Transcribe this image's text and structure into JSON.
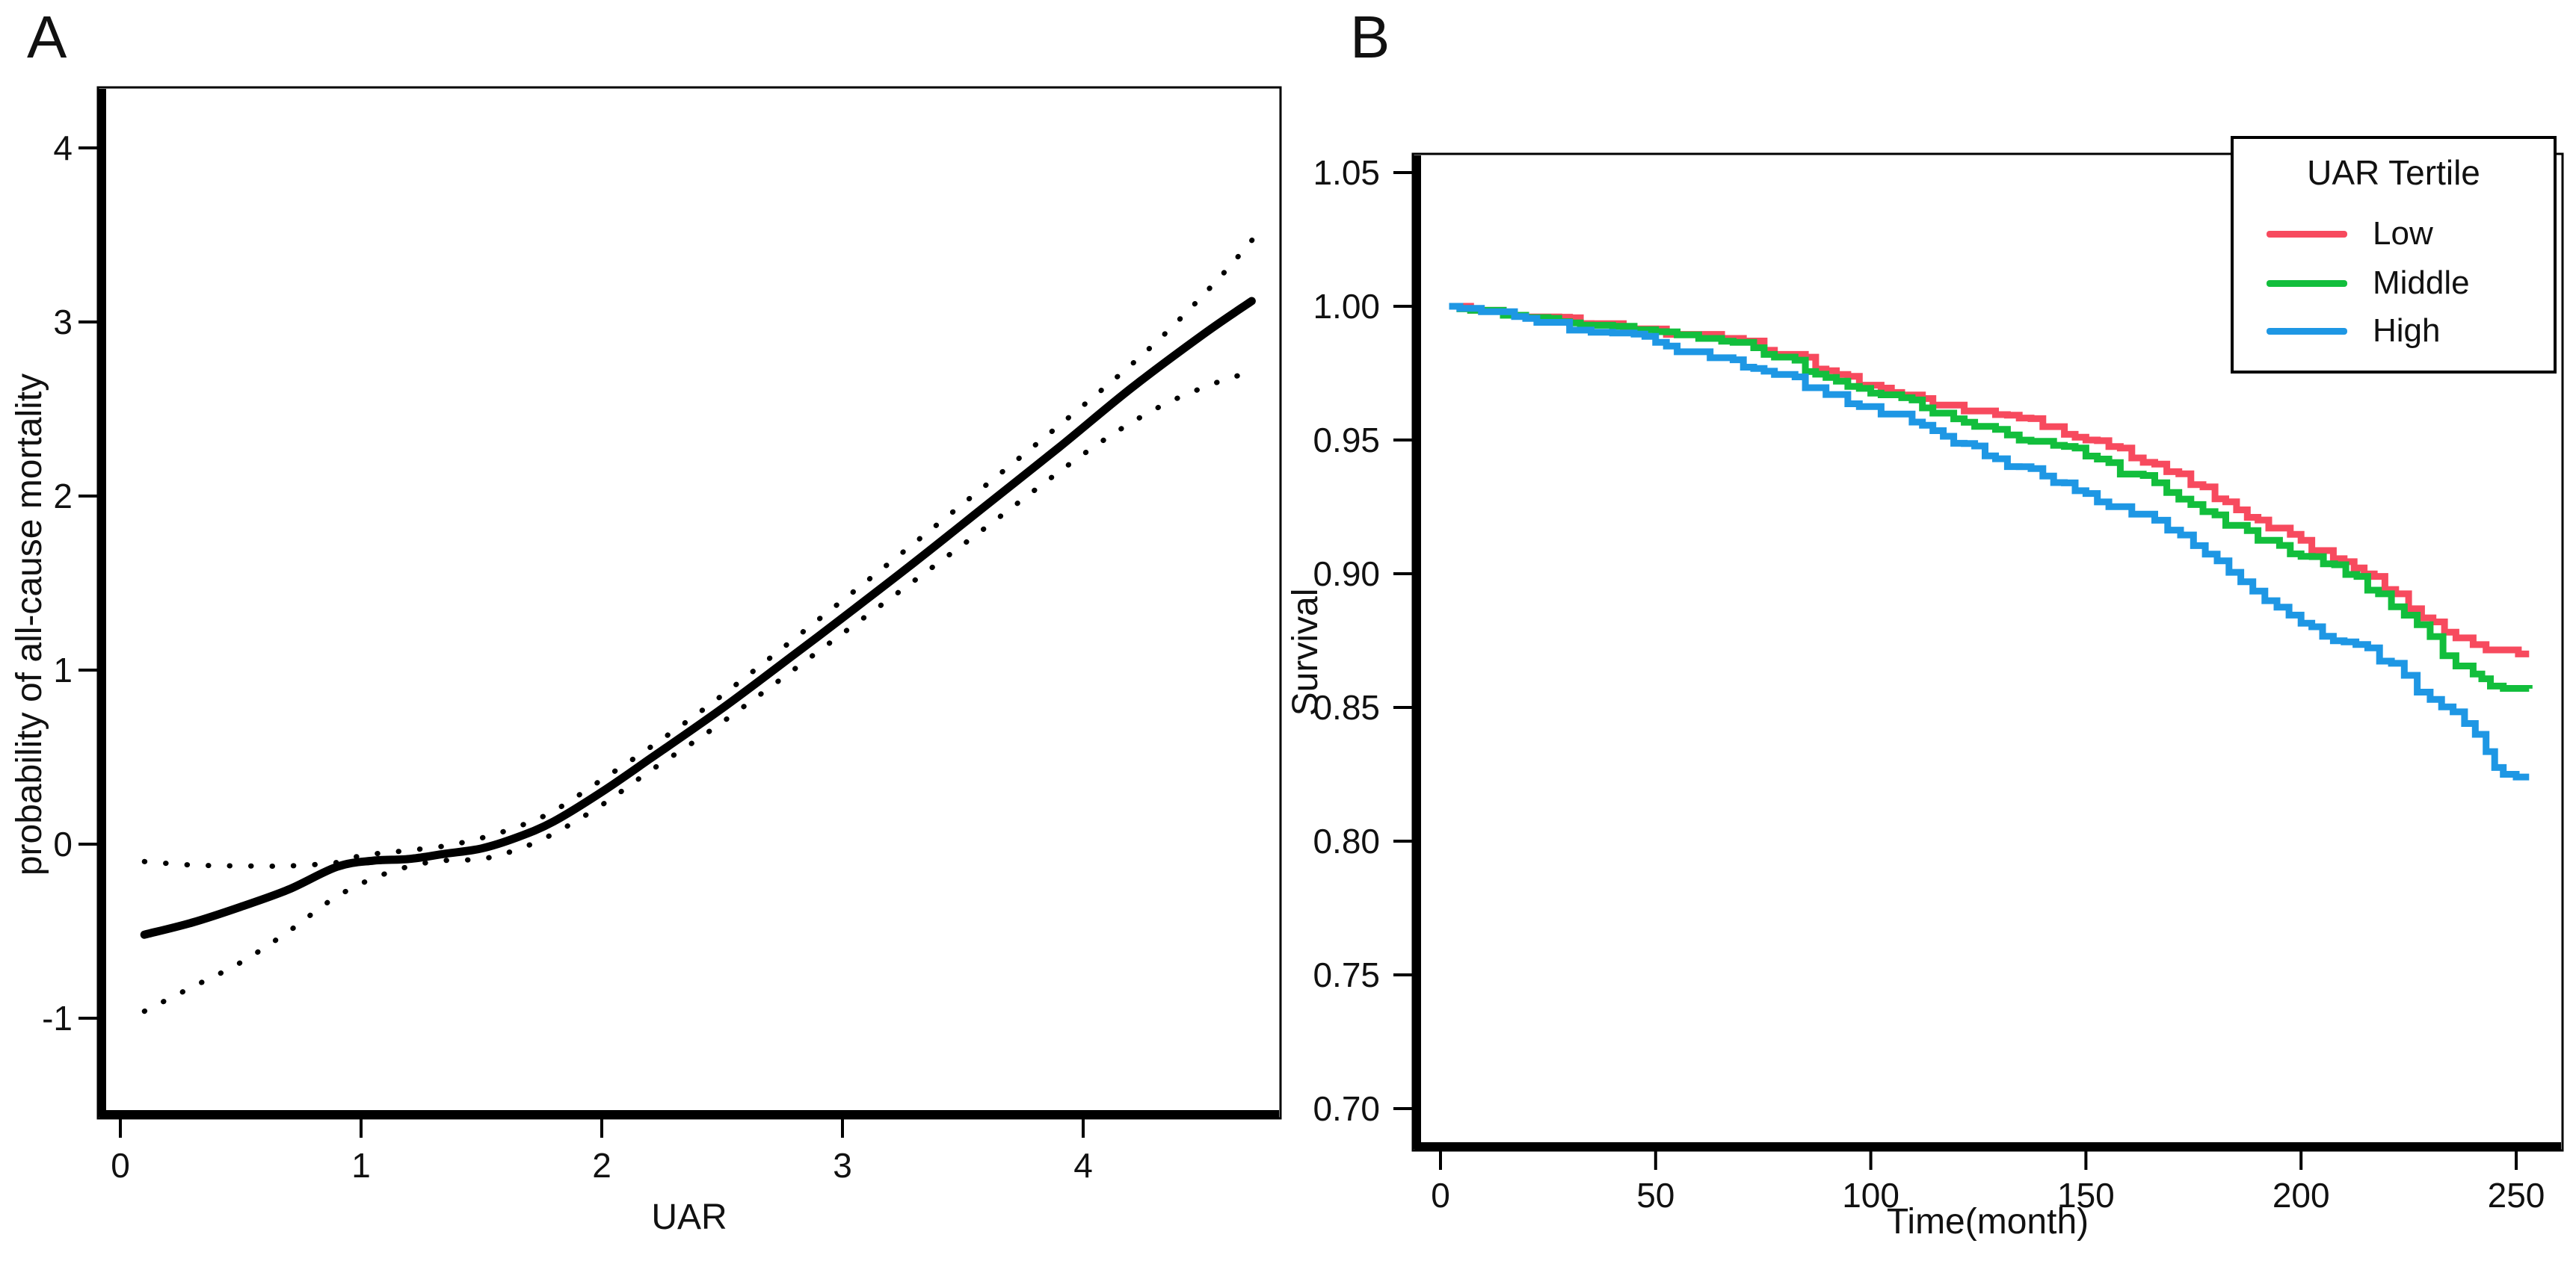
{
  "panels": {
    "a": {
      "label": "A"
    },
    "b": {
      "label": "B"
    }
  },
  "chart_data": [
    {
      "type": "line",
      "panel": "A",
      "title": "",
      "xlabel": "UAR",
      "ylabel": "probability of all-cause mortality",
      "xlim": [
        -0.09,
        4.82
      ],
      "ylim": [
        -1.57,
        4.35
      ],
      "x_ticks": [
        0,
        1,
        2,
        3,
        4
      ],
      "y_ticks": [
        4,
        3,
        2,
        1,
        0,
        -1
      ],
      "grid": false,
      "line_color": "#000000",
      "series": [
        {
          "name": "fitted",
          "style": "solid",
          "points": [
            [
              0.1,
              -0.52
            ],
            [
              0.3,
              -0.45
            ],
            [
              0.5,
              -0.36
            ],
            [
              0.7,
              -0.26
            ],
            [
              0.9,
              -0.13
            ],
            [
              1.05,
              -0.095
            ],
            [
              1.2,
              -0.085
            ],
            [
              1.35,
              -0.055
            ],
            [
              1.5,
              -0.025
            ],
            [
              1.65,
              0.04
            ],
            [
              1.8,
              0.13
            ],
            [
              2.0,
              0.3
            ],
            [
              2.2,
              0.49
            ],
            [
              2.5,
              0.78
            ],
            [
              2.8,
              1.09
            ],
            [
              3.0,
              1.3
            ],
            [
              3.3,
              1.62
            ],
            [
              3.6,
              1.95
            ],
            [
              3.9,
              2.28
            ],
            [
              4.2,
              2.62
            ],
            [
              4.5,
              2.93
            ],
            [
              4.7,
              3.12
            ]
          ]
        },
        {
          "name": "upper_ci",
          "style": "dotted",
          "points": [
            [
              0.1,
              -0.1
            ],
            [
              0.3,
              -0.12
            ],
            [
              0.5,
              -0.125
            ],
            [
              0.7,
              -0.125
            ],
            [
              0.9,
              -0.105
            ],
            [
              1.0,
              -0.065
            ],
            [
              1.1,
              -0.05
            ],
            [
              1.2,
              -0.035
            ],
            [
              1.35,
              -0.01
            ],
            [
              1.5,
              0.035
            ],
            [
              1.65,
              0.1
            ],
            [
              1.8,
              0.19
            ],
            [
              2.0,
              0.37
            ],
            [
              2.2,
              0.555
            ],
            [
              2.5,
              0.855
            ],
            [
              3.0,
              1.4
            ],
            [
              3.5,
              1.955
            ],
            [
              4.0,
              2.52
            ],
            [
              4.3,
              2.88
            ],
            [
              4.55,
              3.23
            ],
            [
              4.72,
              3.5
            ]
          ]
        },
        {
          "name": "lower_ci",
          "style": "dotted",
          "points": [
            [
              0.1,
              -0.96
            ],
            [
              0.3,
              -0.82
            ],
            [
              0.5,
              -0.68
            ],
            [
              0.7,
              -0.5
            ],
            [
              0.9,
              -0.3
            ],
            [
              1.1,
              -0.17
            ],
            [
              1.3,
              -0.1
            ],
            [
              1.5,
              -0.085
            ],
            [
              1.65,
              -0.03
            ],
            [
              1.8,
              0.06
            ],
            [
              2.0,
              0.225
            ],
            [
              2.2,
              0.42
            ],
            [
              2.5,
              0.7
            ],
            [
              3.0,
              1.21
            ],
            [
              3.5,
              1.72
            ],
            [
              4.0,
              2.24
            ],
            [
              4.3,
              2.5
            ],
            [
              4.55,
              2.65
            ],
            [
              4.72,
              2.72
            ]
          ]
        }
      ]
    },
    {
      "type": "line",
      "subtype": "km_step",
      "panel": "B",
      "title": "",
      "xlabel": "Time(month)",
      "ylabel": "Survival",
      "xlim": [
        -6.4,
        260.8
      ],
      "ylim": [
        0.684,
        1.057
      ],
      "x_ticks": [
        0,
        50,
        100,
        150,
        200,
        250
      ],
      "y_ticks": [
        1.05,
        1.0,
        0.95,
        0.9,
        0.85,
        0.8,
        0.75,
        0.7
      ],
      "grid": false,
      "legend_title": "UAR Tertile",
      "legend_position": "top-right",
      "series": [
        {
          "name": "Low",
          "color": "#F74A5E",
          "points": [
            [
              2,
              1.0
            ],
            [
              12,
              0.9985
            ],
            [
              25,
              0.996
            ],
            [
              40,
              0.9935
            ],
            [
              50,
              0.9915
            ],
            [
              60,
              0.9895
            ],
            [
              68,
              0.988
            ],
            [
              80,
              0.982
            ],
            [
              92,
              0.9745
            ],
            [
              100,
              0.9705
            ],
            [
              112,
              0.9655
            ],
            [
              129,
              0.9595
            ],
            [
              140,
              0.955
            ],
            [
              150,
              0.95
            ],
            [
              166,
              0.941
            ],
            [
              180,
              0.928
            ],
            [
              200,
              0.9125
            ],
            [
              210,
              0.9045
            ],
            [
              217,
              0.899
            ],
            [
              222,
              0.8925
            ],
            [
              228,
              0.8835
            ],
            [
              236,
              0.876
            ],
            [
              240,
              0.8735
            ],
            [
              243,
              0.8715
            ],
            [
              253,
              0.87
            ]
          ]
        },
        {
          "name": "Middle",
          "color": "#12BE3C",
          "points": [
            [
              2,
              1.0
            ],
            [
              12,
              0.9985
            ],
            [
              25,
              0.9955
            ],
            [
              40,
              0.9925
            ],
            [
              50,
              0.9905
            ],
            [
              60,
              0.988
            ],
            [
              68,
              0.9865
            ],
            [
              80,
              0.981
            ],
            [
              92,
              0.972
            ],
            [
              100,
              0.9675
            ],
            [
              112,
              0.962
            ],
            [
              129,
              0.954
            ],
            [
              140,
              0.9495
            ],
            [
              150,
              0.944
            ],
            [
              166,
              0.934
            ],
            [
              180,
              0.922
            ],
            [
              200,
              0.9065
            ],
            [
              213,
              0.899
            ],
            [
              218,
              0.8925
            ],
            [
              224,
              0.8845
            ],
            [
              230,
              0.8765
            ],
            [
              236,
              0.8655
            ],
            [
              240,
              0.8625
            ],
            [
              244,
              0.858
            ],
            [
              253,
              0.857
            ]
          ]
        },
        {
          "name": "High",
          "color": "#1E97E4",
          "points": [
            [
              2,
              1.0
            ],
            [
              12,
              0.998
            ],
            [
              25,
              0.994
            ],
            [
              40,
              0.99
            ],
            [
              50,
              0.9865
            ],
            [
              60,
              0.983
            ],
            [
              68,
              0.98
            ],
            [
              80,
              0.9745
            ],
            [
              92,
              0.967
            ],
            [
              100,
              0.9625
            ],
            [
              112,
              0.9555
            ],
            [
              129,
              0.943
            ],
            [
              140,
              0.9365
            ],
            [
              150,
              0.93
            ],
            [
              166,
              0.92
            ],
            [
              175,
              0.9105
            ],
            [
              186,
              0.897
            ],
            [
              200,
              0.8815
            ],
            [
              210,
              0.8745
            ],
            [
              221,
              0.8665
            ],
            [
              230,
              0.853
            ],
            [
              238,
              0.844
            ],
            [
              243,
              0.8335
            ],
            [
              247,
              0.825
            ],
            [
              253,
              0.824
            ]
          ]
        }
      ]
    }
  ]
}
